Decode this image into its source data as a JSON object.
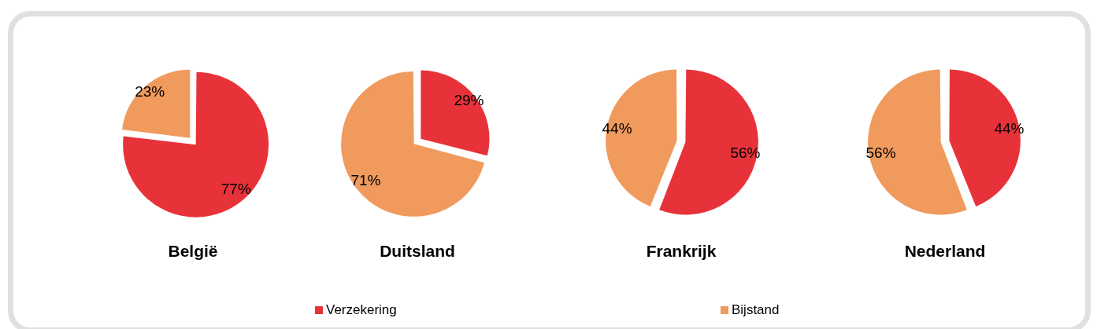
{
  "chart_data": [
    {
      "type": "pie",
      "title": "België",
      "categories": [
        "Verzekering",
        "Bijstand"
      ],
      "values": [
        77,
        23
      ],
      "colors": [
        "#e8323a",
        "#f09a5e"
      ],
      "value_labels": [
        "77%",
        "23%"
      ],
      "legend": "bottom"
    },
    {
      "type": "pie",
      "title": "Duitsland",
      "categories": [
        null,
        null
      ],
      "values": [
        29,
        71
      ],
      "colors": [
        "#e8323a",
        "#f09a5e"
      ],
      "value_labels": [
        "29%",
        "71%"
      ]
    },
    {
      "type": "pie",
      "title": "Frankrijk",
      "categories": [
        null,
        null
      ],
      "values": [
        56,
        44
      ],
      "colors": [
        "#e8323a",
        "#f09a5e"
      ],
      "value_labels": [
        "56%",
        "44%"
      ]
    },
    {
      "type": "pie",
      "title": "Nederland",
      "categories": [
        null,
        null
      ],
      "values": [
        44,
        56
      ],
      "colors": [
        "#e8323a",
        "#f09a5e"
      ],
      "value_labels": [
        "44%",
        "56%"
      ]
    }
  ]
}
